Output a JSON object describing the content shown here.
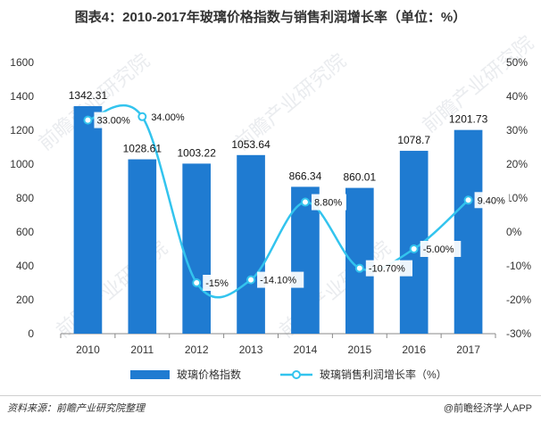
{
  "title": "图表4：2010-2017年玻璃价格指数与销售利润增长率（单位：%）",
  "source": "资料来源：前瞻产业研究院整理",
  "credit": "@前瞻经济学人APP",
  "watermark": "前瞻产业研究院",
  "chart_data": {
    "type": "bar",
    "categories": [
      "2010",
      "2011",
      "2012",
      "2013",
      "2014",
      "2015",
      "2016",
      "2017"
    ],
    "series": [
      {
        "name": "玻璃价格指数",
        "kind": "bar",
        "axis": "left",
        "color": "#1f7bd1",
        "values": [
          1342.31,
          1028.61,
          1003.22,
          1053.64,
          866.34,
          860.01,
          1078.7,
          1201.73
        ],
        "labels": [
          "1342.31",
          "1028.61",
          "1003.22",
          "1053.64",
          "866.34",
          "860.01",
          "1078.7",
          "1201.73"
        ]
      },
      {
        "name": "玻璃销售利润增长率（%）",
        "kind": "line",
        "axis": "right",
        "color": "#33c4ee",
        "values": [
          33.0,
          34.0,
          -15.0,
          -14.1,
          8.8,
          -10.7,
          -5.0,
          9.4
        ],
        "labels": [
          "33.00%",
          "34.00%",
          "-15%",
          "-14.10%",
          "8.80%",
          "-10.70%",
          "-5.00%",
          "9.40%"
        ]
      }
    ],
    "y_left": {
      "min": 0,
      "max": 1600,
      "ticks": [
        "0",
        "200",
        "400",
        "600",
        "800",
        "1000",
        "1200",
        "1400",
        "1600"
      ]
    },
    "y_right": {
      "min": -30,
      "max": 50,
      "ticks": [
        "-30%",
        "-20%",
        "-10%",
        "0%",
        "10%",
        "20%",
        "30%",
        "40%",
        "50%"
      ]
    },
    "legend_position": "bottom"
  }
}
